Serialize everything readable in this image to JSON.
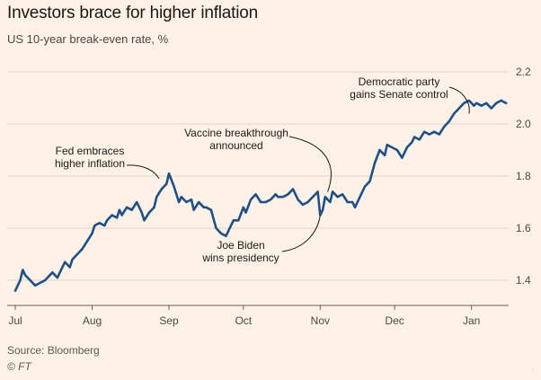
{
  "chart_data": {
    "type": "line",
    "title": "Investors brace for higher inflation",
    "subtitle": "US 10-year break-even rate, %",
    "source": "Source: Bloomberg",
    "credit": "© FT",
    "xlabel": "",
    "ylabel": "",
    "ylim": [
      1.3,
      2.25
    ],
    "yticks": [
      1.4,
      1.6,
      1.8,
      2.0,
      2.2
    ],
    "yticklabels": [
      "1.4",
      "1.6",
      "1.8",
      "2.0",
      "2.2"
    ],
    "xlim": [
      0,
      199
    ],
    "xticks": [
      {
        "label": "Jul",
        "x": 0
      },
      {
        "label": "Aug",
        "x": 31
      },
      {
        "label": "Sep",
        "x": 62
      },
      {
        "label": "Oct",
        "x": 92
      },
      {
        "label": "Nov",
        "x": 123
      },
      {
        "label": "Dec",
        "x": 153
      },
      {
        "label": "Jan",
        "x": 184
      }
    ],
    "grid": true,
    "series": [
      {
        "name": "US 10-year break-even rate",
        "color": "#1f4f87",
        "x": [
          0,
          2,
          3,
          4,
          6,
          8,
          10,
          12,
          14,
          15,
          17,
          19,
          20,
          22,
          23,
          25,
          27,
          29,
          31,
          32,
          34,
          36,
          37,
          39,
          41,
          42,
          43,
          45,
          47,
          49,
          51,
          52,
          54,
          56,
          57,
          59,
          61,
          62,
          64,
          66,
          67,
          69,
          71,
          72,
          74,
          76,
          77,
          79,
          81,
          83,
          85,
          87,
          88,
          90,
          92,
          93,
          95,
          97,
          99,
          101,
          103,
          105,
          106,
          108,
          110,
          112,
          114,
          116,
          118,
          120,
          122,
          123,
          124,
          125,
          127,
          128,
          130,
          132,
          134,
          136,
          137,
          139,
          141,
          143,
          145,
          147,
          149,
          150,
          152,
          154,
          156,
          158,
          160,
          161,
          163,
          165,
          167,
          169,
          171,
          173,
          175,
          177,
          179,
          181,
          183,
          185,
          186,
          188,
          190,
          192,
          194,
          196,
          198
        ],
        "values": [
          1.36,
          1.4,
          1.44,
          1.42,
          1.4,
          1.38,
          1.39,
          1.4,
          1.42,
          1.43,
          1.41,
          1.45,
          1.47,
          1.45,
          1.48,
          1.5,
          1.52,
          1.55,
          1.58,
          1.61,
          1.62,
          1.61,
          1.63,
          1.65,
          1.64,
          1.67,
          1.65,
          1.68,
          1.67,
          1.7,
          1.66,
          1.63,
          1.66,
          1.68,
          1.72,
          1.75,
          1.77,
          1.81,
          1.76,
          1.7,
          1.72,
          1.7,
          1.71,
          1.67,
          1.7,
          1.68,
          1.68,
          1.67,
          1.6,
          1.58,
          1.57,
          1.61,
          1.63,
          1.63,
          1.68,
          1.66,
          1.71,
          1.73,
          1.7,
          1.7,
          1.71,
          1.73,
          1.72,
          1.72,
          1.73,
          1.75,
          1.71,
          1.69,
          1.7,
          1.72,
          1.74,
          1.65,
          1.67,
          1.72,
          1.7,
          1.74,
          1.72,
          1.73,
          1.7,
          1.7,
          1.68,
          1.72,
          1.76,
          1.78,
          1.85,
          1.9,
          1.88,
          1.92,
          1.91,
          1.9,
          1.87,
          1.91,
          1.93,
          1.95,
          1.94,
          1.97,
          1.96,
          1.97,
          1.96,
          1.99,
          2.01,
          2.04,
          2.06,
          2.08,
          2.09,
          2.07,
          2.08,
          2.07,
          2.08,
          2.06,
          2.08,
          2.09,
          2.08
        ]
      }
    ],
    "annotations": [
      {
        "id": "fed",
        "lines": [
          "Fed embraces",
          "higher inflation"
        ],
        "anchor_x": 58,
        "anchor_y": 1.79,
        "side": "above-left"
      },
      {
        "id": "vaccine",
        "lines": [
          "Vaccine breakthrough",
          "announced"
        ],
        "anchor_x": 126,
        "anchor_y": 1.74,
        "side": "above"
      },
      {
        "id": "biden",
        "lines": [
          "Joe Biden",
          "wins presidency"
        ],
        "anchor_x": 123,
        "anchor_y": 1.65,
        "side": "below"
      },
      {
        "id": "senate",
        "lines": [
          "Democratic party",
          "gains Senate control"
        ],
        "anchor_x": 183,
        "anchor_y": 2.04,
        "side": "above"
      }
    ]
  }
}
